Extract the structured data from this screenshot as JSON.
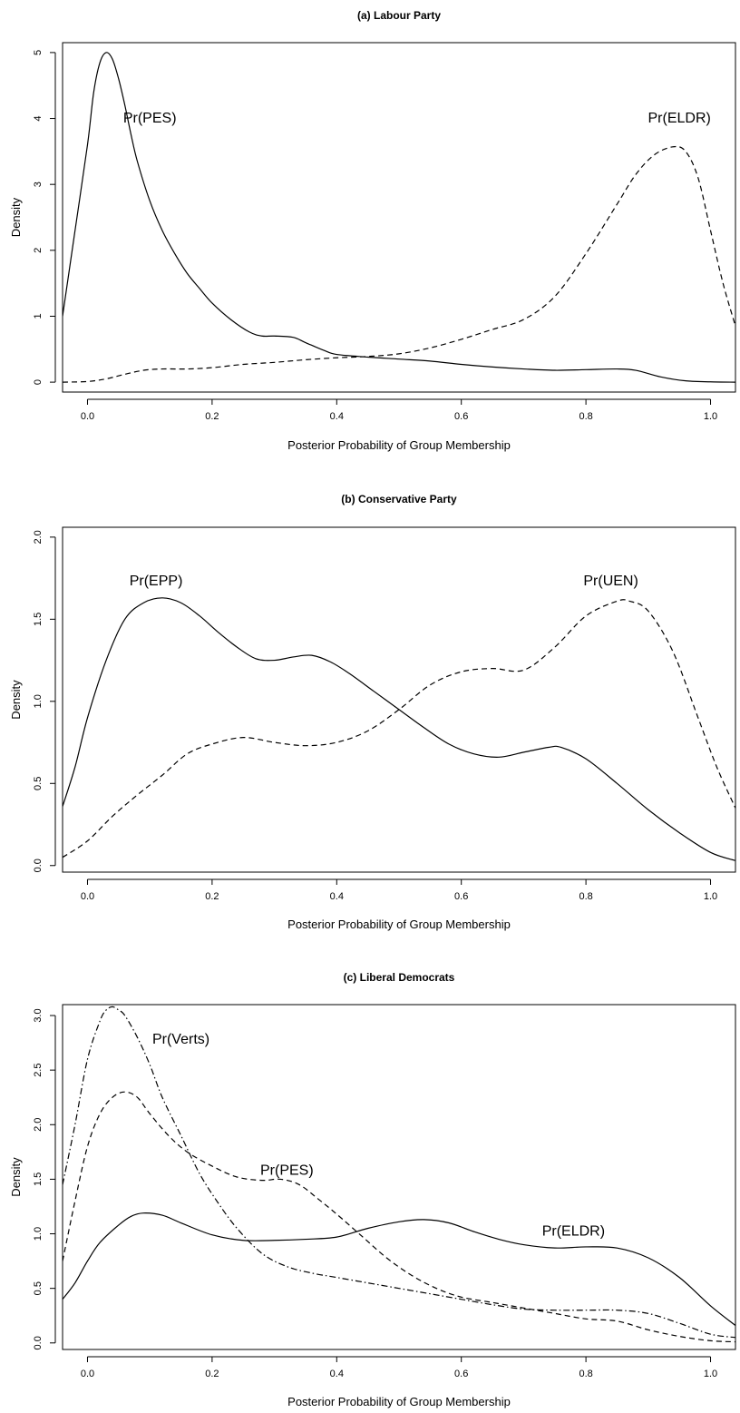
{
  "chart_data": [
    {
      "type": "line",
      "title": "(a) Labour Party",
      "xlabel": "Posterior Probability of Group Membership",
      "ylabel": "Density",
      "xlim": [
        -0.04,
        1.04
      ],
      "ylim": [
        -0.15,
        5.15
      ],
      "xticks": [
        0.0,
        0.2,
        0.4,
        0.6,
        0.8,
        1.0
      ],
      "xtick_labels": [
        "0.0",
        "0.2",
        "0.4",
        "0.6",
        "0.8",
        "1.0"
      ],
      "yticks": [
        0,
        1,
        2,
        3,
        4,
        5
      ],
      "ytick_labels": [
        "0",
        "1",
        "2",
        "3",
        "4",
        "5"
      ],
      "grid": false,
      "annotations": [
        {
          "text": "Pr(PES)",
          "x": 0.1,
          "y": 4.0
        },
        {
          "text": "Pr(ELDR)",
          "x": 0.95,
          "y": 4.0
        }
      ],
      "series": [
        {
          "style": "solid",
          "x": [
            -0.04,
            -0.02,
            0.0,
            0.01,
            0.02,
            0.03,
            0.04,
            0.05,
            0.06,
            0.07,
            0.08,
            0.1,
            0.12,
            0.14,
            0.16,
            0.18,
            0.2,
            0.23,
            0.26,
            0.28,
            0.3,
            0.33,
            0.35,
            0.38,
            0.4,
            0.45,
            0.5,
            0.55,
            0.6,
            0.65,
            0.7,
            0.75,
            0.8,
            0.85,
            0.88,
            0.92,
            0.96,
            1.0,
            1.04
          ],
          "y": [
            1.0,
            2.3,
            3.6,
            4.4,
            4.85,
            5.0,
            4.9,
            4.6,
            4.2,
            3.75,
            3.35,
            2.75,
            2.3,
            1.95,
            1.65,
            1.42,
            1.2,
            0.95,
            0.76,
            0.7,
            0.7,
            0.68,
            0.6,
            0.48,
            0.42,
            0.38,
            0.35,
            0.32,
            0.27,
            0.23,
            0.2,
            0.18,
            0.19,
            0.2,
            0.18,
            0.08,
            0.02,
            0.005,
            0.0
          ]
        },
        {
          "style": "dashed",
          "x": [
            -0.04,
            0.0,
            0.03,
            0.06,
            0.09,
            0.12,
            0.16,
            0.2,
            0.25,
            0.3,
            0.35,
            0.4,
            0.45,
            0.5,
            0.55,
            0.6,
            0.65,
            0.7,
            0.75,
            0.8,
            0.85,
            0.88,
            0.91,
            0.94,
            0.96,
            0.98,
            1.0,
            1.02,
            1.04
          ],
          "y": [
            0.0,
            0.01,
            0.05,
            0.12,
            0.18,
            0.2,
            0.2,
            0.22,
            0.27,
            0.3,
            0.34,
            0.37,
            0.39,
            0.43,
            0.52,
            0.65,
            0.8,
            0.95,
            1.3,
            1.95,
            2.7,
            3.15,
            3.45,
            3.57,
            3.5,
            3.1,
            2.3,
            1.5,
            0.85
          ]
        }
      ]
    },
    {
      "type": "line",
      "title": "(b) Conservative Party",
      "xlabel": "Posterior Probability of Group Membership",
      "ylabel": "Density",
      "xlim": [
        -0.04,
        1.04
      ],
      "ylim": [
        -0.04,
        2.06
      ],
      "xticks": [
        0.0,
        0.2,
        0.4,
        0.6,
        0.8,
        1.0
      ],
      "xtick_labels": [
        "0.0",
        "0.2",
        "0.4",
        "0.6",
        "0.8",
        "1.0"
      ],
      "yticks": [
        0.0,
        0.5,
        1.0,
        1.5,
        2.0
      ],
      "ytick_labels": [
        "0.0",
        "0.5",
        "1.0",
        "1.5",
        "2.0"
      ],
      "grid": false,
      "annotations": [
        {
          "text": "Pr(EPP)",
          "x": 0.11,
          "y": 1.73
        },
        {
          "text": "Pr(UEN)",
          "x": 0.84,
          "y": 1.73
        }
      ],
      "series": [
        {
          "style": "solid",
          "x": [
            -0.04,
            -0.02,
            0.0,
            0.03,
            0.06,
            0.09,
            0.12,
            0.15,
            0.18,
            0.21,
            0.24,
            0.27,
            0.3,
            0.33,
            0.36,
            0.39,
            0.42,
            0.46,
            0.5,
            0.54,
            0.58,
            0.62,
            0.66,
            0.7,
            0.74,
            0.76,
            0.8,
            0.85,
            0.9,
            0.95,
            1.0,
            1.04
          ],
          "y": [
            0.36,
            0.6,
            0.9,
            1.25,
            1.5,
            1.6,
            1.63,
            1.6,
            1.52,
            1.42,
            1.33,
            1.26,
            1.25,
            1.27,
            1.28,
            1.24,
            1.17,
            1.06,
            0.95,
            0.84,
            0.74,
            0.68,
            0.66,
            0.69,
            0.72,
            0.72,
            0.65,
            0.5,
            0.34,
            0.2,
            0.08,
            0.03
          ]
        },
        {
          "style": "dashed",
          "x": [
            -0.04,
            0.0,
            0.04,
            0.08,
            0.12,
            0.16,
            0.2,
            0.25,
            0.3,
            0.35,
            0.4,
            0.45,
            0.5,
            0.55,
            0.6,
            0.65,
            0.7,
            0.75,
            0.8,
            0.85,
            0.87,
            0.9,
            0.94,
            0.98,
            1.01,
            1.04
          ],
          "y": [
            0.05,
            0.15,
            0.3,
            0.43,
            0.55,
            0.68,
            0.74,
            0.78,
            0.75,
            0.73,
            0.75,
            0.82,
            0.95,
            1.1,
            1.18,
            1.2,
            1.19,
            1.33,
            1.52,
            1.61,
            1.61,
            1.55,
            1.3,
            0.9,
            0.6,
            0.35
          ]
        }
      ]
    },
    {
      "type": "line",
      "title": "(c) Liberal Democrats",
      "xlabel": "Posterior Probability of Group Membership",
      "ylabel": "Density",
      "xlim": [
        -0.04,
        1.04
      ],
      "ylim": [
        -0.06,
        3.1
      ],
      "xticks": [
        0.0,
        0.2,
        0.4,
        0.6,
        0.8,
        1.0
      ],
      "xtick_labels": [
        "0.0",
        "0.2",
        "0.4",
        "0.6",
        "0.8",
        "1.0"
      ],
      "yticks": [
        0.0,
        0.5,
        1.0,
        1.5,
        2.0,
        2.5,
        3.0
      ],
      "ytick_labels": [
        "0.0",
        "0.5",
        "1.0",
        "1.5",
        "2.0",
        "2.5",
        "3.0"
      ],
      "grid": false,
      "annotations": [
        {
          "text": "Pr(Verts)",
          "x": 0.15,
          "y": 2.78
        },
        {
          "text": "Pr(PES)",
          "x": 0.32,
          "y": 1.58
        },
        {
          "text": "Pr(ELDR)",
          "x": 0.78,
          "y": 1.02
        }
      ],
      "series": [
        {
          "style": "solid",
          "x": [
            -0.04,
            -0.02,
            0.0,
            0.02,
            0.05,
            0.07,
            0.09,
            0.12,
            0.15,
            0.2,
            0.25,
            0.3,
            0.35,
            0.4,
            0.45,
            0.5,
            0.54,
            0.58,
            0.62,
            0.66,
            0.7,
            0.75,
            0.8,
            0.85,
            0.9,
            0.95,
            1.0,
            1.04
          ],
          "y": [
            0.4,
            0.55,
            0.75,
            0.92,
            1.08,
            1.16,
            1.19,
            1.17,
            1.1,
            0.99,
            0.94,
            0.94,
            0.95,
            0.97,
            1.05,
            1.11,
            1.13,
            1.1,
            1.02,
            0.95,
            0.9,
            0.87,
            0.88,
            0.87,
            0.78,
            0.6,
            0.34,
            0.16
          ]
        },
        {
          "style": "dashed",
          "x": [
            -0.04,
            -0.02,
            0.0,
            0.02,
            0.04,
            0.06,
            0.08,
            0.1,
            0.13,
            0.16,
            0.2,
            0.24,
            0.28,
            0.31,
            0.34,
            0.37,
            0.4,
            0.44,
            0.48,
            0.52,
            0.56,
            0.6,
            0.65,
            0.7,
            0.75,
            0.8,
            0.85,
            0.9,
            0.95,
            1.0,
            1.04
          ],
          "y": [
            0.75,
            1.3,
            1.8,
            2.1,
            2.25,
            2.3,
            2.25,
            2.1,
            1.9,
            1.75,
            1.62,
            1.52,
            1.49,
            1.5,
            1.45,
            1.32,
            1.18,
            0.98,
            0.78,
            0.62,
            0.5,
            0.42,
            0.37,
            0.32,
            0.27,
            0.22,
            0.2,
            0.12,
            0.06,
            0.02,
            0.01
          ]
        },
        {
          "style": "dashdot",
          "x": [
            -0.04,
            -0.02,
            0.0,
            0.02,
            0.03,
            0.04,
            0.05,
            0.06,
            0.08,
            0.1,
            0.12,
            0.15,
            0.18,
            0.21,
            0.24,
            0.28,
            0.32,
            0.36,
            0.4,
            0.45,
            0.5,
            0.55,
            0.6,
            0.65,
            0.7,
            0.75,
            0.8,
            0.85,
            0.9,
            0.95,
            1.0,
            1.04
          ],
          "y": [
            1.45,
            2.0,
            2.6,
            2.95,
            3.05,
            3.08,
            3.05,
            3.0,
            2.8,
            2.55,
            2.25,
            1.9,
            1.55,
            1.28,
            1.05,
            0.82,
            0.7,
            0.64,
            0.6,
            0.55,
            0.5,
            0.45,
            0.4,
            0.35,
            0.31,
            0.3,
            0.3,
            0.3,
            0.27,
            0.18,
            0.08,
            0.05
          ]
        }
      ]
    }
  ]
}
